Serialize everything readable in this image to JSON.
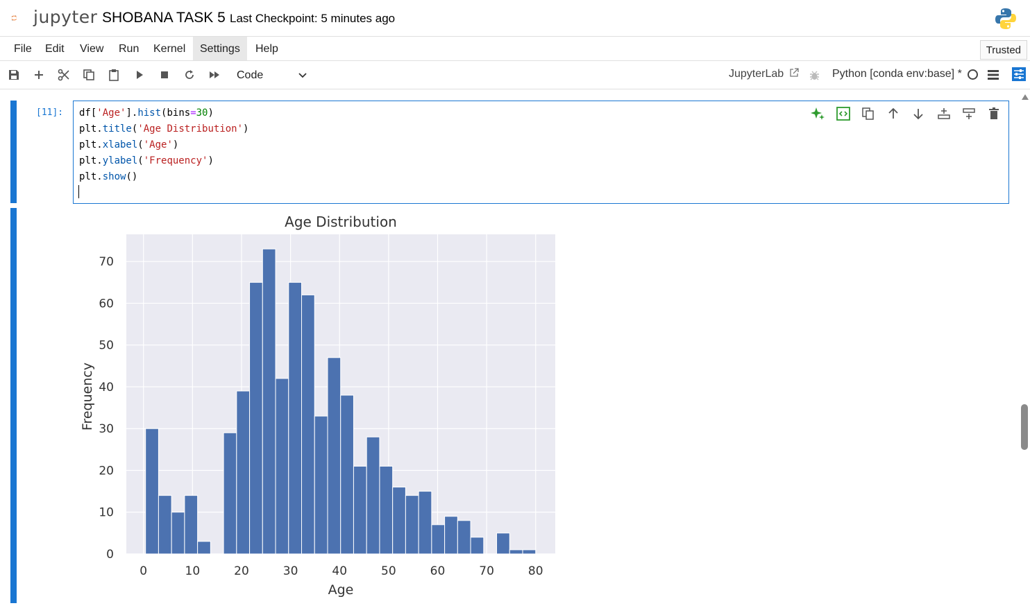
{
  "app": {
    "logo_text": "jupyter",
    "notebook_title": "SHOBANA TASK 5",
    "checkpoint": "Last Checkpoint: 5 minutes ago"
  },
  "menu": {
    "items": [
      "File",
      "Edit",
      "View",
      "Run",
      "Kernel",
      "Settings",
      "Help"
    ],
    "active": "Settings",
    "trusted": "Trusted"
  },
  "toolbar": {
    "cell_type": "Code",
    "jupyterlab_link": "JupyterLab",
    "kernel": "Python [conda env:base] *"
  },
  "cell": {
    "prompt": "[11]:",
    "code_lines": [
      "df['Age'].hist(bins=30)",
      "plt.title('Age Distribution')",
      "plt.xlabel('Age')",
      "plt.ylabel('Frequency')",
      "plt.show()"
    ]
  },
  "colors": {
    "accent": "#1976d2",
    "bar": "#4c72b0",
    "plot_bg": "#eaeaf2"
  },
  "chart_data": {
    "type": "bar",
    "title": "Age Distribution",
    "xlabel": "Age",
    "ylabel": "Frequency",
    "xlim": [
      -3.5,
      84
    ],
    "ylim": [
      0,
      76.5
    ],
    "xticks": [
      0,
      10,
      20,
      30,
      40,
      50,
      60,
      70,
      80
    ],
    "yticks": [
      0,
      10,
      20,
      30,
      40,
      50,
      60,
      70
    ],
    "bin_start": 0.42,
    "bin_width": 2.6527,
    "values": [
      30,
      14,
      10,
      14,
      3,
      0,
      29,
      39,
      65,
      73,
      42,
      65,
      62,
      33,
      47,
      38,
      21,
      28,
      21,
      16,
      14,
      15,
      7,
      9,
      8,
      4,
      0,
      5,
      1,
      1
    ],
    "grid": true
  }
}
